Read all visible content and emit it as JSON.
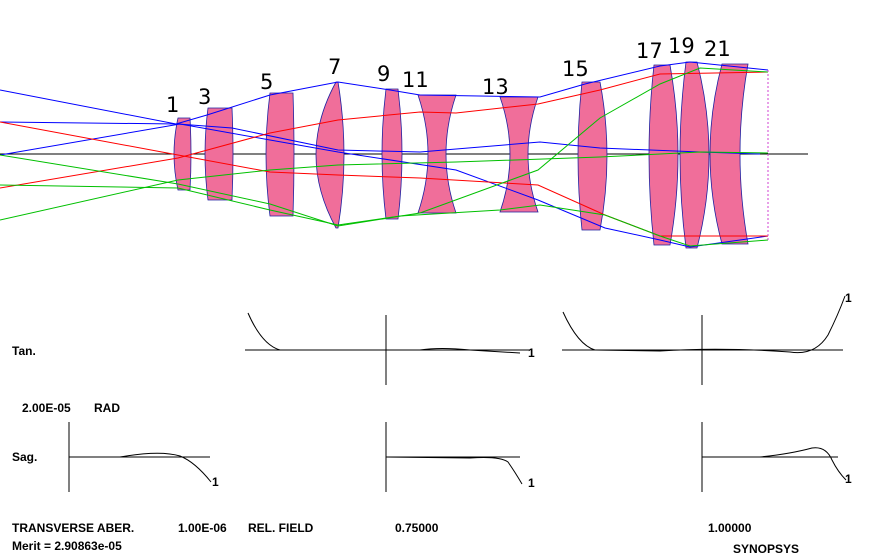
{
  "surface_labels": [
    "1",
    "3",
    "5",
    "7",
    "9",
    "11",
    "13",
    "15",
    "17",
    "19",
    "21"
  ],
  "plots": {
    "tangential_label": "Tan.",
    "sagittal_label": "Sag.",
    "scale": "2.00E-05",
    "scale_unit": "RAD",
    "curve_labels": [
      "1",
      "1",
      "1",
      "1",
      "1"
    ]
  },
  "footer": {
    "title": "TRANSVERSE ABER.",
    "scale": "1.00E-06",
    "field_label": "REL. FIELD",
    "fields": [
      "0.75000",
      "1.00000"
    ],
    "merit": "Merit = 2.90863e-05",
    "brand": "SYNOPSYS"
  }
}
